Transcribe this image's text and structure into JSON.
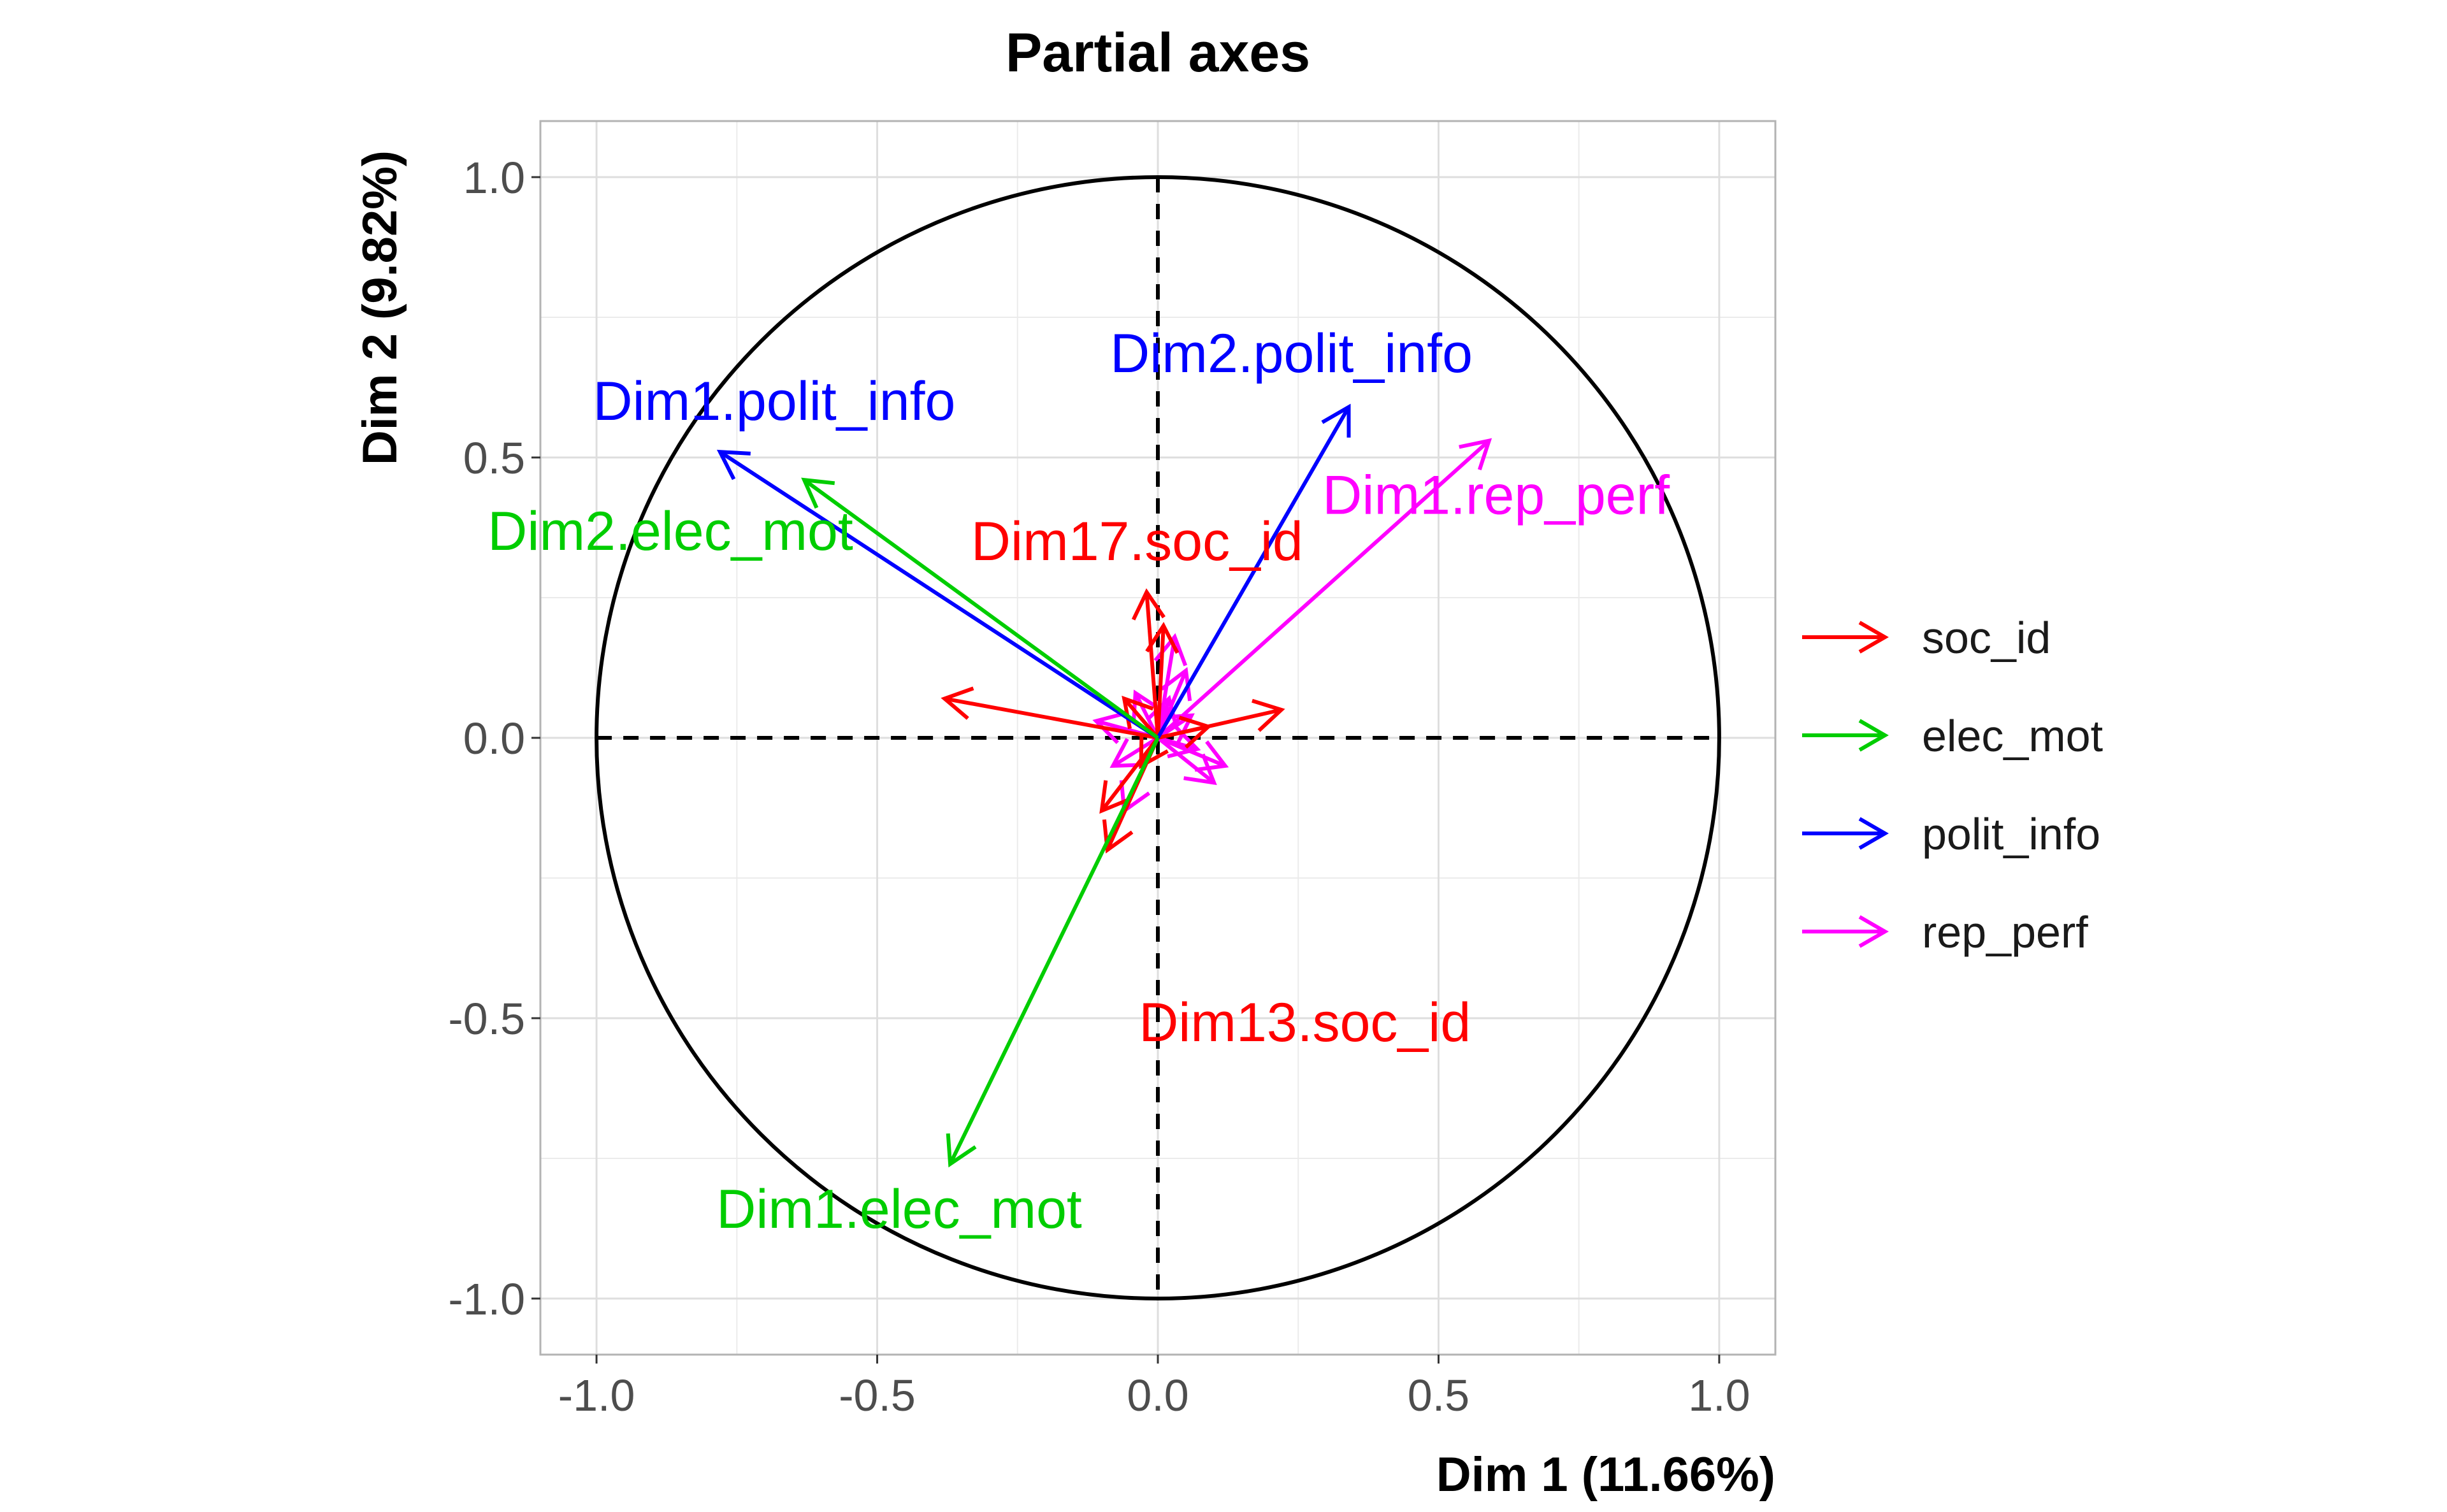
{
  "chart_data": {
    "type": "scatter",
    "title": "Partial axes",
    "xlabel": "Dim 1 (11.66%)",
    "ylabel": "Dim 2 (9.82%)",
    "xlim": [
      -1.1,
      1.1
    ],
    "ylim": [
      -1.1,
      1.1
    ],
    "x_ticks": [
      -1.0,
      -0.5,
      0.0,
      0.5,
      1.0
    ],
    "y_ticks": [
      -1.0,
      -0.5,
      0.0,
      0.5,
      1.0
    ],
    "x_tick_labels": [
      "-1.0",
      "-0.5",
      "0.0",
      "0.5",
      "1.0"
    ],
    "y_tick_labels": [
      "-1.0",
      "-0.5",
      "0.0",
      "0.5",
      "1.0"
    ],
    "grid": true,
    "unit_circle": true,
    "reference_lines": "dashed lines at x = 0 and y = 0",
    "legend_position": "right",
    "series": [
      {
        "name": "soc_id",
        "color": "#ff0000",
        "vectors": [
          {
            "label": "Dim17.soc_id",
            "x": -0.02,
            "y": 0.26
          },
          {
            "label": "Dim13.soc_id",
            "x": -0.09,
            "y": -0.2
          },
          {
            "label": "",
            "x": -0.38,
            "y": 0.07
          },
          {
            "label": "",
            "x": 0.22,
            "y": 0.05
          },
          {
            "label": "",
            "x": 0.01,
            "y": 0.2
          },
          {
            "label": "",
            "x": -0.1,
            "y": -0.13
          },
          {
            "label": "",
            "x": 0.09,
            "y": 0.02
          },
          {
            "label": "",
            "x": -0.06,
            "y": 0.07
          },
          {
            "label": "",
            "x": -0.03,
            "y": -0.05
          }
        ]
      },
      {
        "name": "elec_mot",
        "color": "#00cd00",
        "vectors": [
          {
            "label": "Dim1.elec_mot",
            "x": -0.37,
            "y": -0.76
          },
          {
            "label": "Dim2.elec_mot",
            "x": -0.63,
            "y": 0.46
          }
        ]
      },
      {
        "name": "polit_info",
        "color": "#0000ff",
        "vectors": [
          {
            "label": "Dim1.polit_info",
            "x": -0.78,
            "y": 0.51
          },
          {
            "label": "Dim2.polit_info",
            "x": 0.34,
            "y": 0.59
          }
        ]
      },
      {
        "name": "rep_perf",
        "color": "#ff00ff",
        "vectors": [
          {
            "label": "Dim1.rep_perf",
            "x": 0.59,
            "y": 0.53
          },
          {
            "label": "",
            "x": 0.03,
            "y": 0.18
          },
          {
            "label": "",
            "x": 0.1,
            "y": -0.08
          },
          {
            "label": "",
            "x": 0.12,
            "y": -0.05
          },
          {
            "label": "",
            "x": -0.06,
            "y": -0.13
          },
          {
            "label": "",
            "x": -0.11,
            "y": 0.03
          },
          {
            "label": "",
            "x": 0.05,
            "y": 0.12
          },
          {
            "label": "",
            "x": -0.04,
            "y": 0.08
          },
          {
            "label": "",
            "x": 0.07,
            "y": -0.02
          },
          {
            "label": "",
            "x": -0.08,
            "y": -0.05
          },
          {
            "label": "",
            "x": 0.02,
            "y": 0.07
          },
          {
            "label": "",
            "x": 0.06,
            "y": 0.04
          }
        ]
      }
    ],
    "legend": [
      "soc_id",
      "elec_mot",
      "polit_info",
      "rep_perf"
    ]
  }
}
